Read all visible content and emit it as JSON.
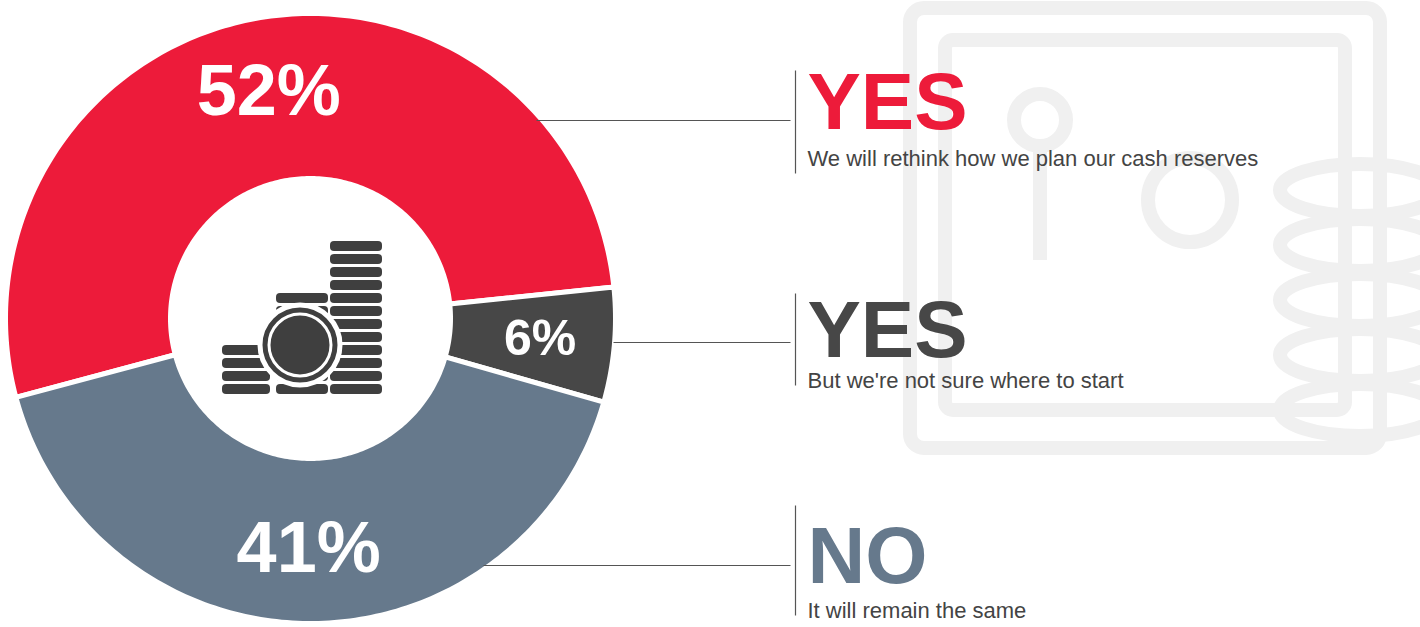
{
  "chart_data": {
    "type": "donut",
    "categories": [
      "YES",
      "YES",
      "NO"
    ],
    "descriptions": [
      "We will rethink how we plan our cash reserves",
      "But we're not sure where to start",
      "It will remain the same"
    ],
    "values": [
      52,
      6,
      41
    ],
    "value_labels": [
      "52%",
      "6%",
      "41%"
    ],
    "colors": [
      "#ed1b3a",
      "#474747",
      "#66798c"
    ],
    "data_labels": true
  }
}
